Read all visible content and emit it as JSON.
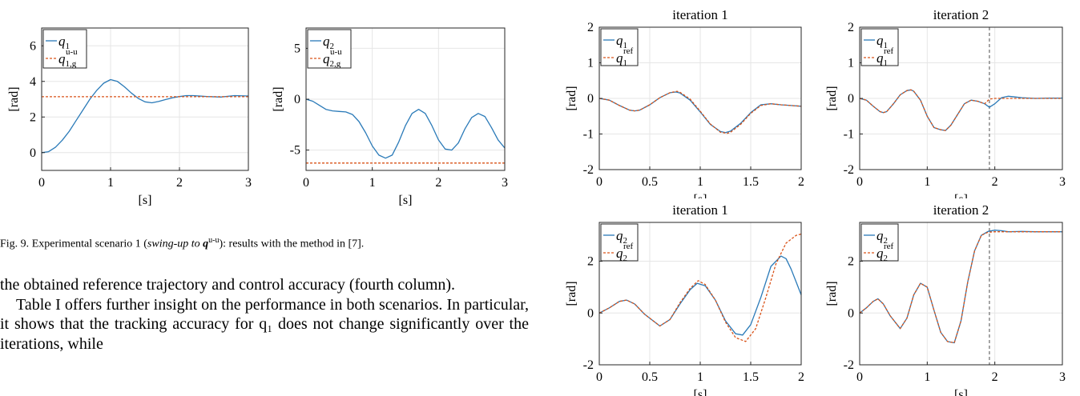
{
  "colors": {
    "measured": "#2a7ab8",
    "reference": "#d95319",
    "axis": "#262626",
    "grid": "#e6e6e6",
    "marker": "#888888"
  },
  "caption": {
    "fig": "Fig. 9.",
    "pre": "Experimental scenario 1 (",
    "italic": "swing-up to",
    "math": "q",
    "sup": "u-u",
    "post": "): results with the method in [7]."
  },
  "paragraphs": [
    "the obtained reference trajectory and control accuracy (fourth column).",
    "Table I offers further insight on the performance in both scenarios. In particular, it shows that the tracking accuracy for q₁ does not change significantly over the iterations, while"
  ],
  "chart_data": [
    {
      "id": "left-q1",
      "type": "line",
      "title": "",
      "xlabel": "[s]",
      "ylabel": "[rad]",
      "xlim": [
        0,
        3
      ],
      "ylim": [
        -1,
        7
      ],
      "xticks": [
        0,
        1,
        2,
        3
      ],
      "xtick_labels": [
        "0",
        "1",
        "2",
        "3"
      ],
      "yticks": [
        0,
        2,
        4,
        6
      ],
      "ytick_labels": [
        "0",
        "2",
        "4",
        "6"
      ],
      "legend": {
        "position": "top-left",
        "entries": [
          {
            "base": "q",
            "sub": "1",
            "sup": ""
          },
          {
            "base": "q",
            "sub": "1,g",
            "sup": "u-u"
          }
        ]
      },
      "series": [
        {
          "name": "q1",
          "style": "solid",
          "x": [
            0,
            0.1,
            0.2,
            0.3,
            0.4,
            0.5,
            0.6,
            0.7,
            0.8,
            0.9,
            1.0,
            1.1,
            1.2,
            1.3,
            1.4,
            1.5,
            1.6,
            1.7,
            1.8,
            1.9,
            2.0,
            2.1,
            2.2,
            2.4,
            2.6,
            2.8,
            3.0
          ],
          "y": [
            0,
            0.05,
            0.3,
            0.7,
            1.2,
            1.8,
            2.4,
            3.0,
            3.5,
            3.9,
            4.1,
            4.0,
            3.7,
            3.35,
            3.05,
            2.85,
            2.8,
            2.88,
            2.98,
            3.08,
            3.15,
            3.2,
            3.2,
            3.15,
            3.12,
            3.2,
            3.18
          ]
        },
        {
          "name": "q1g",
          "style": "dashed",
          "x": [
            0,
            3
          ],
          "y": [
            3.14,
            3.14
          ]
        }
      ]
    },
    {
      "id": "left-q2",
      "type": "line",
      "title": "",
      "xlabel": "[s]",
      "ylabel": "[rad]",
      "xlim": [
        0,
        3
      ],
      "ylim": [
        -7,
        7
      ],
      "xticks": [
        0,
        1,
        2,
        3
      ],
      "xtick_labels": [
        "0",
        "1",
        "2",
        "3"
      ],
      "yticks": [
        -5,
        0,
        5
      ],
      "ytick_labels": [
        "-5",
        "0",
        "5"
      ],
      "legend": {
        "position": "top-left",
        "entries": [
          {
            "base": "q",
            "sub": "2",
            "sup": ""
          },
          {
            "base": "q",
            "sub": "2,g",
            "sup": "u-u"
          }
        ]
      },
      "series": [
        {
          "name": "q2",
          "style": "solid",
          "x": [
            0,
            0.1,
            0.2,
            0.3,
            0.4,
            0.5,
            0.6,
            0.7,
            0.8,
            0.9,
            1.0,
            1.1,
            1.2,
            1.3,
            1.4,
            1.5,
            1.6,
            1.7,
            1.8,
            1.9,
            2.0,
            2.1,
            2.2,
            2.3,
            2.4,
            2.5,
            2.6,
            2.7,
            2.8,
            2.9,
            3.0
          ],
          "y": [
            0,
            -0.2,
            -0.6,
            -1.0,
            -1.15,
            -1.2,
            -1.25,
            -1.5,
            -2.2,
            -3.3,
            -4.6,
            -5.5,
            -5.8,
            -5.5,
            -4.2,
            -2.6,
            -1.4,
            -1.0,
            -1.4,
            -2.6,
            -4.0,
            -4.9,
            -5.0,
            -4.3,
            -2.9,
            -1.8,
            -1.4,
            -1.7,
            -2.8,
            -4.0,
            -4.8
          ]
        },
        {
          "name": "q2g",
          "style": "dashed",
          "x": [
            0,
            3
          ],
          "y": [
            -6.28,
            -6.28
          ]
        }
      ]
    },
    {
      "id": "it1-q1",
      "type": "line",
      "title": "iteration 1",
      "xlabel": "[s]",
      "ylabel": "[rad]",
      "xlim": [
        0,
        2
      ],
      "ylim": [
        -2,
        2
      ],
      "xticks": [
        0,
        0.5,
        1,
        1.5,
        2
      ],
      "xtick_labels": [
        "0",
        "0.5",
        "1",
        "1.5",
        "2"
      ],
      "yticks": [
        -2,
        -1,
        0,
        1,
        2
      ],
      "ytick_labels": [
        "-2",
        "-1",
        "0",
        "1",
        "2"
      ],
      "legend": {
        "position": "top-left",
        "entries": [
          {
            "base": "q",
            "sub": "1",
            "sup": ""
          },
          {
            "base": "q",
            "sub": "1",
            "sup": "ref"
          }
        ]
      },
      "series": [
        {
          "name": "q1",
          "style": "solid",
          "x": [
            0,
            0.1,
            0.2,
            0.3,
            0.35,
            0.4,
            0.5,
            0.6,
            0.7,
            0.76,
            0.8,
            0.9,
            1.0,
            1.1,
            1.2,
            1.25,
            1.3,
            1.4,
            1.5,
            1.6,
            1.7,
            1.8,
            1.9,
            2.0
          ],
          "y": [
            0,
            -0.05,
            -0.2,
            -0.33,
            -0.35,
            -0.33,
            -0.18,
            0.02,
            0.16,
            0.18,
            0.15,
            -0.05,
            -0.38,
            -0.73,
            -0.93,
            -0.96,
            -0.92,
            -0.7,
            -0.4,
            -0.18,
            -0.15,
            -0.18,
            -0.2,
            -0.22
          ]
        },
        {
          "name": "q1ref",
          "style": "dashed",
          "x": [
            0,
            0.1,
            0.2,
            0.3,
            0.35,
            0.4,
            0.5,
            0.6,
            0.7,
            0.77,
            0.8,
            0.9,
            1.0,
            1.1,
            1.2,
            1.27,
            1.3,
            1.4,
            1.5,
            1.6,
            1.7,
            1.8,
            1.9,
            2.0
          ],
          "y": [
            0,
            -0.05,
            -0.2,
            -0.33,
            -0.35,
            -0.33,
            -0.18,
            0.02,
            0.16,
            0.2,
            0.17,
            -0.02,
            -0.36,
            -0.72,
            -0.95,
            -0.98,
            -0.95,
            -0.73,
            -0.42,
            -0.2,
            -0.15,
            -0.18,
            -0.2,
            -0.22
          ]
        }
      ]
    },
    {
      "id": "it2-q1",
      "type": "line",
      "title": "iteration 2",
      "xlabel": "[s]",
      "ylabel": "[rad]",
      "xlim": [
        0,
        3
      ],
      "ylim": [
        -2,
        2
      ],
      "xticks": [
        0,
        1,
        2,
        3
      ],
      "xtick_labels": [
        "0",
        "1",
        "2",
        "3"
      ],
      "yticks": [
        -2,
        -1,
        0,
        1,
        2
      ],
      "ytick_labels": [
        "-2",
        "-1",
        "0",
        "1",
        "2"
      ],
      "vline": 1.92,
      "legend": {
        "position": "top-left",
        "entries": [
          {
            "base": "q",
            "sub": "1",
            "sup": ""
          },
          {
            "base": "q",
            "sub": "1",
            "sup": "ref"
          }
        ]
      },
      "series": [
        {
          "name": "q1",
          "style": "solid",
          "x": [
            0,
            0.1,
            0.2,
            0.3,
            0.35,
            0.4,
            0.5,
            0.6,
            0.7,
            0.76,
            0.8,
            0.9,
            1.0,
            1.1,
            1.2,
            1.27,
            1.35,
            1.45,
            1.55,
            1.65,
            1.75,
            1.85,
            1.92,
            2.0,
            2.1,
            2.2,
            2.3,
            2.4,
            2.6,
            2.8,
            3.0
          ],
          "y": [
            0,
            -0.05,
            -0.22,
            -0.37,
            -0.4,
            -0.37,
            -0.15,
            0.1,
            0.22,
            0.24,
            0.2,
            -0.05,
            -0.5,
            -0.82,
            -0.88,
            -0.9,
            -0.75,
            -0.45,
            -0.15,
            -0.05,
            -0.08,
            -0.15,
            -0.25,
            -0.15,
            0.02,
            0.06,
            0.04,
            0.02,
            0.0,
            0.01,
            0.01
          ]
        },
        {
          "name": "q1ref",
          "style": "dashed",
          "x": [
            0,
            0.1,
            0.2,
            0.3,
            0.35,
            0.4,
            0.5,
            0.6,
            0.7,
            0.76,
            0.8,
            0.9,
            1.0,
            1.1,
            1.2,
            1.27,
            1.35,
            1.45,
            1.55,
            1.65,
            1.75,
            1.85,
            1.92,
            2.0,
            2.2,
            2.5,
            3.0
          ],
          "y": [
            0,
            -0.05,
            -0.22,
            -0.37,
            -0.4,
            -0.37,
            -0.15,
            0.1,
            0.22,
            0.24,
            0.2,
            -0.05,
            -0.5,
            -0.82,
            -0.88,
            -0.9,
            -0.75,
            -0.45,
            -0.15,
            -0.05,
            -0.08,
            -0.15,
            -0.02,
            0.0,
            0.0,
            0.0,
            0.0
          ]
        }
      ]
    },
    {
      "id": "it1-q2",
      "type": "line",
      "title": "iteration 1",
      "xlabel": "[s]",
      "ylabel": "[rad]",
      "xlim": [
        0,
        2
      ],
      "ylim": [
        -2,
        3.5
      ],
      "xticks": [
        0,
        0.5,
        1,
        1.5,
        2
      ],
      "xtick_labels": [
        "0",
        "0.5",
        "1",
        "1.5",
        "2"
      ],
      "yticks": [
        -2,
        0,
        2
      ],
      "ytick_labels": [
        "-2",
        "0",
        "2"
      ],
      "legend": {
        "position": "top-left",
        "entries": [
          {
            "base": "q",
            "sub": "2",
            "sup": ""
          },
          {
            "base": "q",
            "sub": "2",
            "sup": "ref"
          }
        ]
      },
      "series": [
        {
          "name": "q2",
          "style": "solid",
          "x": [
            0,
            0.1,
            0.2,
            0.27,
            0.35,
            0.45,
            0.6,
            0.7,
            0.8,
            0.9,
            0.97,
            1.05,
            1.15,
            1.25,
            1.35,
            1.42,
            1.5,
            1.6,
            1.7,
            1.8,
            1.85,
            1.9,
            1.95,
            2.0
          ],
          "y": [
            0,
            0.2,
            0.45,
            0.5,
            0.35,
            -0.05,
            -0.5,
            -0.25,
            0.35,
            0.9,
            1.15,
            1.05,
            0.5,
            -0.3,
            -0.8,
            -0.85,
            -0.45,
            0.6,
            1.8,
            2.2,
            2.1,
            1.7,
            1.2,
            0.7
          ]
        },
        {
          "name": "q2ref",
          "style": "dashed",
          "x": [
            0,
            0.1,
            0.2,
            0.27,
            0.35,
            0.45,
            0.6,
            0.7,
            0.8,
            0.9,
            0.98,
            1.05,
            1.15,
            1.25,
            1.35,
            1.45,
            1.55,
            1.65,
            1.75,
            1.85,
            1.95,
            2.0
          ],
          "y": [
            0,
            0.2,
            0.45,
            0.5,
            0.35,
            -0.05,
            -0.5,
            -0.25,
            0.4,
            0.95,
            1.25,
            1.1,
            0.5,
            -0.35,
            -0.95,
            -1.1,
            -0.6,
            0.6,
            1.9,
            2.7,
            3.0,
            3.05
          ]
        }
      ]
    },
    {
      "id": "it2-q2",
      "type": "line",
      "title": "iteration 2",
      "xlabel": "[s]",
      "ylabel": "[rad]",
      "xlim": [
        0,
        3
      ],
      "ylim": [
        -2,
        3.5
      ],
      "xticks": [
        0,
        1,
        2,
        3
      ],
      "xtick_labels": [
        "0",
        "1",
        "2",
        "3"
      ],
      "yticks": [
        -2,
        0,
        2
      ],
      "ytick_labels": [
        "-2",
        "0",
        "2"
      ],
      "vline": 1.92,
      "legend": {
        "position": "top-left",
        "entries": [
          {
            "base": "q",
            "sub": "2",
            "sup": ""
          },
          {
            "base": "q",
            "sub": "2",
            "sup": "ref"
          }
        ]
      },
      "series": [
        {
          "name": "q2",
          "style": "solid",
          "x": [
            0,
            0.1,
            0.2,
            0.27,
            0.35,
            0.45,
            0.6,
            0.7,
            0.8,
            0.9,
            1.0,
            1.1,
            1.2,
            1.3,
            1.4,
            1.5,
            1.6,
            1.7,
            1.8,
            1.9,
            2.0,
            2.1,
            2.2,
            2.4,
            2.6,
            2.8,
            3.0
          ],
          "y": [
            0,
            0.2,
            0.45,
            0.55,
            0.35,
            -0.1,
            -0.6,
            -0.2,
            0.7,
            1.15,
            1.0,
            0.1,
            -0.75,
            -1.1,
            -1.15,
            -0.3,
            1.2,
            2.4,
            3.0,
            3.15,
            3.2,
            3.18,
            3.14,
            3.15,
            3.14,
            3.14,
            3.14
          ]
        },
        {
          "name": "q2ref",
          "style": "dashed",
          "x": [
            0,
            0.1,
            0.2,
            0.27,
            0.35,
            0.45,
            0.6,
            0.7,
            0.8,
            0.9,
            1.0,
            1.1,
            1.2,
            1.3,
            1.4,
            1.5,
            1.6,
            1.7,
            1.8,
            1.9,
            2.0,
            2.2,
            2.5,
            3.0
          ],
          "y": [
            0,
            0.2,
            0.45,
            0.55,
            0.35,
            -0.1,
            -0.6,
            -0.2,
            0.7,
            1.15,
            1.0,
            0.1,
            -0.75,
            -1.1,
            -1.15,
            -0.3,
            1.2,
            2.4,
            3.0,
            3.12,
            3.14,
            3.14,
            3.14,
            3.14
          ]
        }
      ]
    }
  ]
}
